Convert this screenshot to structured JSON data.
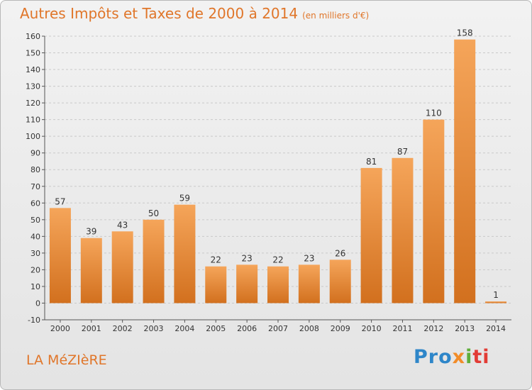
{
  "title": {
    "main": "Autres Impôts et Taxes de 2000 à 2014",
    "unit": "(en milliers d'€)"
  },
  "place_name": "LA MéZIèRE",
  "logo": {
    "parts": [
      "Pro",
      "x",
      "i",
      "ti"
    ]
  },
  "colors": {
    "title": "#e0762a",
    "bar_top": "#f5a55a",
    "bar_bottom": "#d2701e",
    "grid": "#c9c9c9",
    "axis": "#555555"
  },
  "chart_data": {
    "type": "bar",
    "categories": [
      "2000",
      "2001",
      "2002",
      "2003",
      "2004",
      "2005",
      "2006",
      "2007",
      "2008",
      "2009",
      "2010",
      "2011",
      "2012",
      "2013",
      "2014"
    ],
    "values": [
      57,
      39,
      43,
      50,
      59,
      22,
      23,
      22,
      23,
      26,
      81,
      87,
      110,
      158,
      1
    ],
    "ylim": [
      -10,
      160
    ],
    "yticks": [
      -10,
      0,
      10,
      20,
      30,
      40,
      50,
      60,
      70,
      80,
      90,
      100,
      110,
      120,
      130,
      140,
      150,
      160
    ],
    "grid": true,
    "xlabel": "",
    "ylabel": ""
  }
}
